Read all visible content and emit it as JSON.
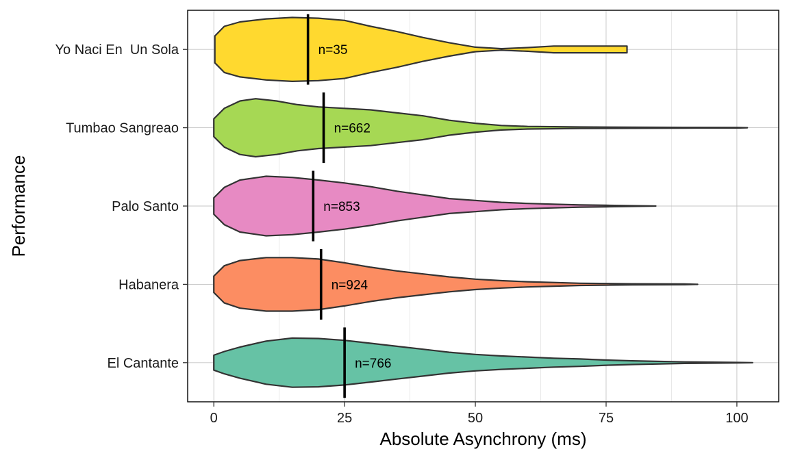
{
  "chart_data": {
    "type": "violin",
    "orientation": "horizontal",
    "title": "",
    "xlabel": "Absolute Asynchrony (ms)",
    "ylabel": "Performance",
    "xlim": [
      -5,
      108
    ],
    "x_ticks": [
      0,
      25,
      50,
      75,
      100
    ],
    "grid": true,
    "legend": "none",
    "series": [
      {
        "name": "Yo Naci En  Un Sola",
        "color": "#FFD92F",
        "median": 18,
        "n_label": "n=35",
        "profile": [
          [
            0.2,
            0.36
          ],
          [
            2,
            0.62
          ],
          [
            5,
            0.74
          ],
          [
            10,
            0.82
          ],
          [
            15,
            0.86
          ],
          [
            20,
            0.84
          ],
          [
            25,
            0.78
          ],
          [
            30,
            0.62
          ],
          [
            35,
            0.48
          ],
          [
            40,
            0.32
          ],
          [
            45,
            0.18
          ],
          [
            50,
            0.06
          ],
          [
            55,
            0.02
          ],
          [
            60,
            0.05
          ],
          [
            65,
            0.09
          ],
          [
            70,
            0.09
          ],
          [
            75,
            0.09
          ],
          [
            79,
            0.09
          ]
        ]
      },
      {
        "name": "Tumbao Sangreao",
        "color": "#A6D854",
        "median": 21,
        "n_label": "n=662",
        "profile": [
          [
            0,
            0.24
          ],
          [
            2,
            0.52
          ],
          [
            5,
            0.72
          ],
          [
            8,
            0.78
          ],
          [
            12,
            0.72
          ],
          [
            16,
            0.62
          ],
          [
            20,
            0.56
          ],
          [
            25,
            0.52
          ],
          [
            30,
            0.48
          ],
          [
            35,
            0.4
          ],
          [
            40,
            0.32
          ],
          [
            45,
            0.2
          ],
          [
            50,
            0.12
          ],
          [
            55,
            0.06
          ],
          [
            60,
            0.035
          ],
          [
            70,
            0.02
          ],
          [
            80,
            0.015
          ],
          [
            90,
            0.01
          ],
          [
            100,
            0.008
          ],
          [
            102,
            0
          ]
        ]
      },
      {
        "name": "Palo Santo",
        "color": "#E78AC3",
        "median": 19,
        "n_label": "n=853",
        "profile": [
          [
            0,
            0.22
          ],
          [
            2,
            0.5
          ],
          [
            5,
            0.7
          ],
          [
            10,
            0.8
          ],
          [
            15,
            0.77
          ],
          [
            20,
            0.7
          ],
          [
            25,
            0.62
          ],
          [
            30,
            0.52
          ],
          [
            35,
            0.4
          ],
          [
            40,
            0.3
          ],
          [
            45,
            0.2
          ],
          [
            50,
            0.15
          ],
          [
            55,
            0.1
          ],
          [
            60,
            0.07
          ],
          [
            65,
            0.05
          ],
          [
            70,
            0.03
          ],
          [
            75,
            0.02
          ],
          [
            80,
            0.01
          ],
          [
            84.5,
            0
          ]
        ]
      },
      {
        "name": "Habanera",
        "color": "#FC8D62",
        "median": 20.5,
        "n_label": "n=924",
        "profile": [
          [
            0,
            0.22
          ],
          [
            2,
            0.5
          ],
          [
            5,
            0.64
          ],
          [
            10,
            0.72
          ],
          [
            15,
            0.72
          ],
          [
            20,
            0.68
          ],
          [
            25,
            0.58
          ],
          [
            30,
            0.46
          ],
          [
            35,
            0.36
          ],
          [
            40,
            0.28
          ],
          [
            45,
            0.2
          ],
          [
            50,
            0.14
          ],
          [
            55,
            0.1
          ],
          [
            60,
            0.07
          ],
          [
            65,
            0.05
          ],
          [
            70,
            0.03
          ],
          [
            80,
            0.015
          ],
          [
            90,
            0.01
          ],
          [
            92.5,
            0
          ]
        ]
      },
      {
        "name": "El Cantante",
        "color": "#66C2A5",
        "median": 25,
        "n_label": "n=766",
        "profile": [
          [
            0,
            0.2
          ],
          [
            2,
            0.3
          ],
          [
            5,
            0.42
          ],
          [
            10,
            0.58
          ],
          [
            15,
            0.66
          ],
          [
            20,
            0.65
          ],
          [
            25,
            0.6
          ],
          [
            30,
            0.52
          ],
          [
            35,
            0.44
          ],
          [
            40,
            0.36
          ],
          [
            45,
            0.28
          ],
          [
            50,
            0.22
          ],
          [
            55,
            0.18
          ],
          [
            60,
            0.15
          ],
          [
            65,
            0.12
          ],
          [
            70,
            0.1
          ],
          [
            75,
            0.07
          ],
          [
            80,
            0.05
          ],
          [
            90,
            0.02
          ],
          [
            100,
            0.005
          ],
          [
            103,
            0
          ]
        ]
      }
    ]
  }
}
